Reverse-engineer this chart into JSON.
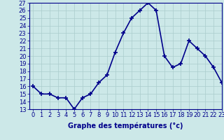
{
  "x": [
    0,
    1,
    2,
    3,
    4,
    5,
    6,
    7,
    8,
    9,
    10,
    11,
    12,
    13,
    14,
    15,
    16,
    17,
    18,
    19,
    20,
    21,
    22,
    23
  ],
  "y": [
    16.0,
    15.0,
    15.0,
    14.5,
    14.5,
    13.0,
    14.5,
    15.0,
    16.5,
    17.5,
    20.5,
    23.0,
    25.0,
    26.0,
    27.0,
    26.0,
    20.0,
    18.5,
    19.0,
    22.0,
    21.0,
    20.0,
    18.5,
    16.5
  ],
  "line_color": "#00008B",
  "marker": "+",
  "marker_size": 4,
  "marker_color": "#00008B",
  "background_color": "#cce8e8",
  "grid_color": "#aacccc",
  "xlabel": "Graphe des températures (°c)",
  "ylim": [
    13,
    27
  ],
  "xlim": [
    -0.5,
    23
  ],
  "yticks": [
    13,
    14,
    15,
    16,
    17,
    18,
    19,
    20,
    21,
    22,
    23,
    24,
    25,
    26,
    27
  ],
  "xticks": [
    0,
    1,
    2,
    3,
    4,
    5,
    6,
    7,
    8,
    9,
    10,
    11,
    12,
    13,
    14,
    15,
    16,
    17,
    18,
    19,
    20,
    21,
    22,
    23
  ],
  "xtick_labels": [
    "0",
    "1",
    "2",
    "3",
    "4",
    "5",
    "6",
    "7",
    "8",
    "9",
    "10",
    "11",
    "12",
    "13",
    "14",
    "15",
    "16",
    "17",
    "18",
    "19",
    "20",
    "21",
    "22",
    "23"
  ],
  "title_color": "#00008B",
  "axis_color": "#00008B",
  "tick_color": "#00008B",
  "label_fontsize": 7,
  "tick_fontsize": 6,
  "linewidth": 1.2
}
